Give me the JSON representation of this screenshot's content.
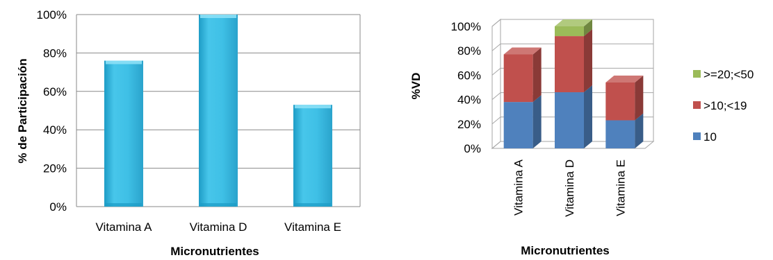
{
  "chart_data": [
    {
      "type": "bar",
      "categories": [
        "Vitamina A",
        "Vitamina  D",
        "Vitamina  E"
      ],
      "values": [
        76,
        100,
        53
      ],
      "xlabel": "Micronutrientes",
      "ylabel": "% de Participación",
      "ylim": [
        0,
        100
      ],
      "yticks": [
        "0%",
        "20%",
        "40%",
        "60%",
        "80%",
        "100%"
      ],
      "grid": true,
      "legend": "none",
      "colors": {
        "bar": "#3FC0E6",
        "bar_dark": "#1C9BC4",
        "grid": "#888888"
      }
    },
    {
      "type": "bar",
      "stacked": true,
      "three_d": true,
      "categories": [
        "Vitamina A",
        "Vitamina D",
        "Vitamina E"
      ],
      "series": [
        {
          "name": "10",
          "values": [
            38,
            46,
            23
          ],
          "color": "#4F81BD"
        },
        {
          "name": ">10;<19",
          "values": [
            39,
            46,
            31
          ],
          "color": "#C0504D"
        },
        {
          "name": ">=20;<50",
          "values": [
            0,
            8,
            0
          ],
          "color": "#9BBB59"
        }
      ],
      "xlabel": "Micronutrientes",
      "ylabel": "%VD",
      "ylim": [
        0,
        100
      ],
      "yticks": [
        "0%",
        "20%",
        "40%",
        "60%",
        "80%",
        "100%"
      ],
      "grid": true,
      "legend": "right",
      "legend_order": [
        ">=20;<50",
        ">10;<19",
        "10"
      ]
    }
  ]
}
